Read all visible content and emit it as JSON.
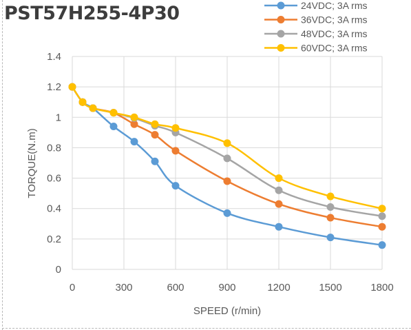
{
  "chart_data": {
    "type": "line",
    "title": "PST57H255-4P30",
    "xlabel": "SPEED (r/min)",
    "ylabel": "TORQUE(N.m)",
    "xlim": [
      0,
      1800
    ],
    "ylim": [
      0,
      1.4
    ],
    "xticks": [
      0,
      300,
      600,
      900,
      1200,
      1500,
      1800
    ],
    "yticks": [
      "0",
      "0.2",
      "0.4",
      "0.6",
      "0.8",
      "1",
      "1.2",
      "1.4"
    ],
    "grid": true,
    "legend_position": "top-right",
    "series": [
      {
        "name": "24VDC; 3A rms",
        "color": "#5B9BD5",
        "x": [
          0,
          60,
          120,
          240,
          360,
          480,
          600,
          900,
          1200,
          1500,
          1800
        ],
        "y": [
          1.2,
          1.1,
          1.06,
          0.94,
          0.84,
          0.71,
          0.55,
          0.37,
          0.28,
          0.21,
          0.16
        ]
      },
      {
        "name": "36VDC; 3A rms",
        "color": "#ED7D31",
        "x": [
          0,
          60,
          120,
          240,
          360,
          480,
          600,
          900,
          1200,
          1500,
          1800
        ],
        "y": [
          1.2,
          1.1,
          1.06,
          1.03,
          0.955,
          0.885,
          0.78,
          0.58,
          0.43,
          0.34,
          0.28
        ]
      },
      {
        "name": "48VDC; 3A rms",
        "color": "#A5A5A5",
        "x": [
          0,
          60,
          120,
          240,
          360,
          480,
          600,
          900,
          1200,
          1500,
          1800
        ],
        "y": [
          1.2,
          1.1,
          1.06,
          1.03,
          0.995,
          0.945,
          0.9,
          0.73,
          0.52,
          0.41,
          0.35
        ]
      },
      {
        "name": "60VDC; 3A rms",
        "color": "#FFC000",
        "x": [
          0,
          60,
          120,
          240,
          360,
          480,
          600,
          900,
          1200,
          1500,
          1800
        ],
        "y": [
          1.2,
          1.1,
          1.06,
          1.03,
          1.0,
          0.955,
          0.93,
          0.83,
          0.6,
          0.48,
          0.4
        ]
      }
    ]
  }
}
